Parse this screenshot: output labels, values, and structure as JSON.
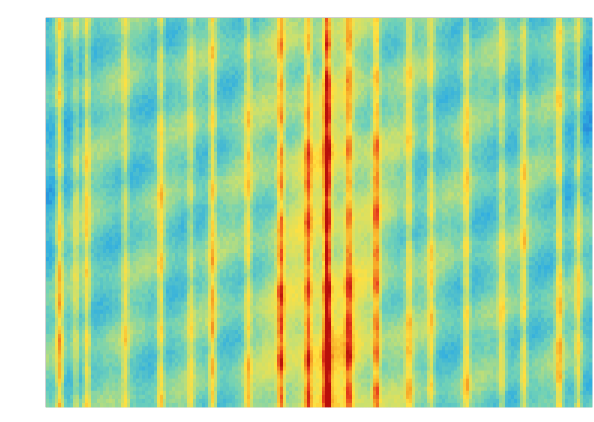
{
  "chart_data": {
    "type": "heatmap",
    "title": "",
    "xlabel": "",
    "ylabel": "",
    "x_tick_labels": [],
    "y_tick_labels": [],
    "colormap": [
      "#1e6fd6",
      "#31aee0",
      "#6fd1b8",
      "#c8e070",
      "#ffe040",
      "#f7a325",
      "#e8401c",
      "#b8100a"
    ],
    "background_color": "#ffffff",
    "ridges": [
      {
        "x": 0.025,
        "strength": 0.55
      },
      {
        "x": 0.055,
        "strength": 0.28
      },
      {
        "x": 0.075,
        "strength": 0.42
      },
      {
        "x": 0.145,
        "strength": 0.32
      },
      {
        "x": 0.21,
        "strength": 0.45
      },
      {
        "x": 0.265,
        "strength": 0.3
      },
      {
        "x": 0.305,
        "strength": 0.5
      },
      {
        "x": 0.37,
        "strength": 0.4
      },
      {
        "x": 0.43,
        "strength": 0.62
      },
      {
        "x": 0.48,
        "strength": 0.55
      },
      {
        "x": 0.515,
        "strength": 1.0
      },
      {
        "x": 0.555,
        "strength": 0.55
      },
      {
        "x": 0.605,
        "strength": 0.62
      },
      {
        "x": 0.665,
        "strength": 0.4
      },
      {
        "x": 0.705,
        "strength": 0.38
      },
      {
        "x": 0.77,
        "strength": 0.45
      },
      {
        "x": 0.835,
        "strength": 0.34
      },
      {
        "x": 0.875,
        "strength": 0.42
      },
      {
        "x": 0.94,
        "strength": 0.5
      },
      {
        "x": 0.975,
        "strength": 0.4
      }
    ],
    "vertical_profile": [
      {
        "y": 0.0,
        "level": 0.3
      },
      {
        "y": 0.15,
        "level": 0.35
      },
      {
        "y": 0.35,
        "level": 0.58
      },
      {
        "y": 0.55,
        "level": 0.55
      },
      {
        "y": 0.75,
        "level": 0.72
      },
      {
        "y": 0.88,
        "level": 0.82
      },
      {
        "y": 1.0,
        "level": 0.75
      }
    ],
    "grid": false,
    "legend": "none"
  }
}
